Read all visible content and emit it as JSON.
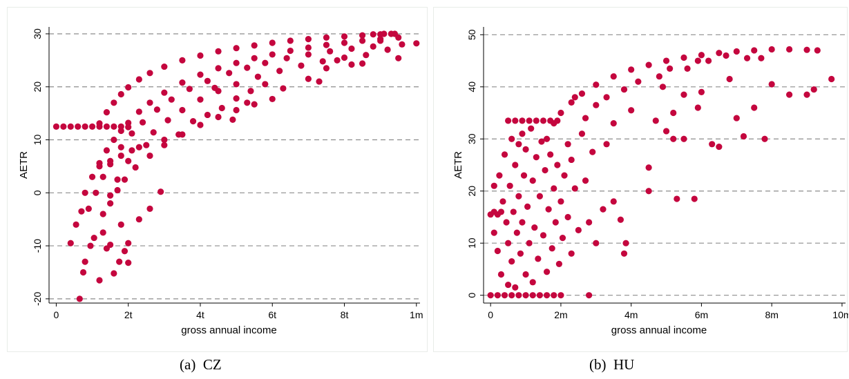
{
  "captions": [
    {
      "label": "(a)",
      "name": "CZ"
    },
    {
      "label": "(b)",
      "name": "HU"
    }
  ],
  "colors": {
    "points": "#c4063e",
    "grid": "#8c8c8c",
    "axis": "#000000"
  },
  "chart_data": [
    {
      "type": "scatter",
      "xlabel": "gross annual income",
      "ylabel": "AETR",
      "xlim": [
        -0.2,
        10.1
      ],
      "ylim": [
        -20.8,
        31.3
      ],
      "x_units": "hundred-thousands",
      "xticks": [
        {
          "v": 0,
          "label": "0"
        },
        {
          "v": 2,
          "label": "2t"
        },
        {
          "v": 4,
          "label": "4t"
        },
        {
          "v": 6,
          "label": "6t"
        },
        {
          "v": 8,
          "label": "8t"
        },
        {
          "v": 10,
          "label": "1m"
        }
      ],
      "yticks": [
        {
          "v": -20,
          "label": "-20"
        },
        {
          "v": -10,
          "label": "-10"
        },
        {
          "v": 0,
          "label": "0"
        },
        {
          "v": 10,
          "label": "10"
        },
        {
          "v": 20,
          "label": "20"
        },
        {
          "v": 30,
          "label": "30"
        }
      ],
      "grid": "horizontal-dashed",
      "points": [
        [
          0.0,
          12.5
        ],
        [
          0.2,
          12.5
        ],
        [
          0.4,
          12.5
        ],
        [
          0.6,
          12.5
        ],
        [
          0.8,
          12.5
        ],
        [
          1.0,
          12.5
        ],
        [
          1.2,
          12.5
        ],
        [
          1.4,
          12.5
        ],
        [
          1.6,
          12.5
        ],
        [
          1.8,
          12.5
        ],
        [
          2.0,
          12.4
        ],
        [
          1.2,
          13.1
        ],
        [
          1.4,
          15.2
        ],
        [
          1.6,
          17.0
        ],
        [
          1.8,
          18.6
        ],
        [
          2.0,
          19.9
        ],
        [
          2.3,
          21.4
        ],
        [
          2.6,
          22.6
        ],
        [
          3.0,
          23.8
        ],
        [
          3.5,
          25.0
        ],
        [
          4.0,
          25.9
        ],
        [
          4.5,
          26.7
        ],
        [
          5.0,
          27.3
        ],
        [
          5.5,
          27.8
        ],
        [
          6.0,
          28.3
        ],
        [
          6.5,
          28.7
        ],
        [
          7.0,
          29.0
        ],
        [
          7.5,
          29.3
        ],
        [
          8.0,
          29.5
        ],
        [
          8.5,
          29.7
        ],
        [
          9.0,
          29.9
        ],
        [
          9.4,
          30.0
        ],
        [
          0.8,
          0.0
        ],
        [
          1.0,
          3.0
        ],
        [
          1.2,
          5.6
        ],
        [
          1.4,
          8.0
        ],
        [
          1.6,
          10.0
        ],
        [
          1.8,
          11.7
        ],
        [
          2.0,
          13.2
        ],
        [
          2.3,
          15.3
        ],
        [
          2.6,
          17.0
        ],
        [
          3.0,
          18.9
        ],
        [
          3.5,
          20.8
        ],
        [
          4.0,
          22.3
        ],
        [
          4.5,
          23.5
        ],
        [
          5.0,
          24.5
        ],
        [
          5.5,
          25.4
        ],
        [
          6.0,
          26.1
        ],
        [
          6.5,
          26.8
        ],
        [
          7.0,
          27.4
        ],
        [
          7.5,
          27.9
        ],
        [
          8.0,
          28.3
        ],
        [
          8.5,
          28.7
        ],
        [
          9.0,
          29.0
        ],
        [
          9.5,
          29.3
        ],
        [
          0.9,
          -3.0
        ],
        [
          1.1,
          0.0
        ],
        [
          1.3,
          3.0
        ],
        [
          1.5,
          5.4
        ],
        [
          1.8,
          8.6
        ],
        [
          2.1,
          11.2
        ],
        [
          2.4,
          13.3
        ],
        [
          2.8,
          15.7
        ],
        [
          3.2,
          17.6
        ],
        [
          3.7,
          19.6
        ],
        [
          4.2,
          21.1
        ],
        [
          4.8,
          22.6
        ],
        [
          5.3,
          23.6
        ],
        [
          5.8,
          24.5
        ],
        [
          6.4,
          25.4
        ],
        [
          7.0,
          26.1
        ],
        [
          7.6,
          26.7
        ],
        [
          8.2,
          27.2
        ],
        [
          8.8,
          27.6
        ],
        [
          1.3,
          -4.0
        ],
        [
          1.5,
          -0.5
        ],
        [
          1.7,
          2.5
        ],
        [
          2.0,
          6.0
        ],
        [
          2.3,
          8.6
        ],
        [
          2.7,
          11.4
        ],
        [
          3.1,
          13.7
        ],
        [
          3.5,
          15.6
        ],
        [
          4.0,
          17.6
        ],
        [
          4.5,
          19.2
        ],
        [
          5.0,
          20.5
        ],
        [
          5.6,
          21.9
        ],
        [
          6.2,
          23.0
        ],
        [
          6.8,
          24.0
        ],
        [
          7.4,
          24.8
        ],
        [
          8.0,
          25.5
        ],
        [
          8.6,
          26.0
        ],
        [
          1.5,
          -2.0
        ],
        [
          1.7,
          0.5
        ],
        [
          1.9,
          2.5
        ],
        [
          2.2,
          4.8
        ],
        [
          2.6,
          7.0
        ],
        [
          3.0,
          9.0
        ],
        [
          3.5,
          11.0
        ],
        [
          4.0,
          12.8
        ],
        [
          4.5,
          14.3
        ],
        [
          5.0,
          15.6
        ],
        [
          5.5,
          16.7
        ],
        [
          6.0,
          17.7
        ],
        [
          1.2,
          5.0
        ],
        [
          1.5,
          6.0
        ],
        [
          1.8,
          7.0
        ],
        [
          2.1,
          8.0
        ],
        [
          2.5,
          9.0
        ],
        [
          3.0,
          10.0
        ],
        [
          3.4,
          11.0
        ],
        [
          0.4,
          -9.5
        ],
        [
          0.55,
          -6.0
        ],
        [
          0.7,
          -3.5
        ],
        [
          0.65,
          -20.0
        ],
        [
          0.75,
          -15.0
        ],
        [
          0.8,
          -13.0
        ],
        [
          0.95,
          -10.0
        ],
        [
          1.05,
          -8.5
        ],
        [
          1.2,
          -16.5
        ],
        [
          1.3,
          -7.5
        ],
        [
          1.4,
          -10.5
        ],
        [
          1.5,
          -9.8
        ],
        [
          1.6,
          -15.2
        ],
        [
          1.75,
          -13.0
        ],
        [
          1.8,
          -6.0
        ],
        [
          1.9,
          -11.0
        ],
        [
          2.0,
          -13.2
        ],
        [
          2.0,
          -9.5
        ],
        [
          2.3,
          -5.0
        ],
        [
          2.6,
          -3.0
        ],
        [
          2.9,
          0.2
        ],
        [
          7.5,
          23.5
        ],
        [
          7.8,
          25.0
        ],
        [
          8.2,
          24.2
        ],
        [
          8.5,
          24.4
        ],
        [
          9.0,
          28.7
        ],
        [
          9.2,
          27.0
        ],
        [
          9.5,
          25.4
        ],
        [
          9.6,
          28.0
        ],
        [
          10.0,
          28.2
        ],
        [
          6.3,
          19.7
        ],
        [
          7.0,
          21.5
        ],
        [
          7.3,
          21.0
        ],
        [
          5.8,
          20.5
        ],
        [
          5.4,
          19.2
        ],
        [
          5.0,
          17.8
        ],
        [
          4.6,
          16.0
        ],
        [
          4.2,
          14.7
        ],
        [
          3.8,
          13.5
        ],
        [
          4.4,
          19.8
        ],
        [
          5.3,
          17.0
        ],
        [
          4.9,
          13.8
        ],
        [
          9.3,
          30.0
        ],
        [
          9.1,
          30.0
        ],
        [
          8.8,
          29.9
        ]
      ]
    },
    {
      "type": "scatter",
      "xlabel": "gross annual income",
      "ylabel": "AETR",
      "xlim": [
        -0.2,
        10.1
      ],
      "ylim": [
        -1.5,
        51.5
      ],
      "x_units": "millions",
      "xticks": [
        {
          "v": 0,
          "label": "0"
        },
        {
          "v": 2,
          "label": "2m"
        },
        {
          "v": 4,
          "label": "4m"
        },
        {
          "v": 6,
          "label": "6m"
        },
        {
          "v": 8,
          "label": "8m"
        },
        {
          "v": 10,
          "label": "10m"
        }
      ],
      "yticks": [
        {
          "v": 0,
          "label": "0"
        },
        {
          "v": 10,
          "label": "10"
        },
        {
          "v": 20,
          "label": "20"
        },
        {
          "v": 30,
          "label": "30"
        },
        {
          "v": 40,
          "label": "40"
        },
        {
          "v": 50,
          "label": "50"
        }
      ],
      "grid": "horizontal-dashed",
      "points": [
        [
          0.0,
          0.0
        ],
        [
          0.2,
          0.0
        ],
        [
          0.4,
          0.0
        ],
        [
          0.6,
          0.0
        ],
        [
          0.8,
          0.0
        ],
        [
          1.0,
          0.0
        ],
        [
          1.2,
          0.0
        ],
        [
          1.4,
          0.0
        ],
        [
          1.6,
          0.0
        ],
        [
          1.8,
          0.0
        ],
        [
          2.0,
          0.0
        ],
        [
          2.8,
          0.0
        ],
        [
          0.0,
          15.5
        ],
        [
          0.1,
          16.0
        ],
        [
          0.2,
          15.5
        ],
        [
          0.3,
          16.0
        ],
        [
          0.5,
          33.5
        ],
        [
          0.7,
          33.5
        ],
        [
          0.9,
          33.5
        ],
        [
          1.1,
          33.5
        ],
        [
          1.3,
          33.5
        ],
        [
          1.5,
          33.5
        ],
        [
          1.7,
          33.5
        ],
        [
          1.9,
          33.5
        ],
        [
          1.6,
          30.0
        ],
        [
          1.8,
          33.0
        ],
        [
          2.0,
          35.0
        ],
        [
          2.3,
          37.0
        ],
        [
          2.6,
          38.7
        ],
        [
          3.0,
          40.4
        ],
        [
          3.5,
          42.0
        ],
        [
          4.0,
          43.3
        ],
        [
          4.5,
          44.2
        ],
        [
          5.0,
          45.0
        ],
        [
          5.5,
          45.6
        ],
        [
          6.0,
          46.1
        ],
        [
          6.5,
          46.5
        ],
        [
          7.0,
          46.8
        ],
        [
          7.5,
          47.0
        ],
        [
          8.0,
          47.2
        ],
        [
          8.5,
          47.2
        ],
        [
          9.0,
          47.1
        ],
        [
          9.3,
          47.0
        ],
        [
          0.1,
          21.0
        ],
        [
          0.1,
          12.0
        ],
        [
          0.2,
          8.5
        ],
        [
          0.25,
          23.0
        ],
        [
          0.3,
          4.0
        ],
        [
          0.35,
          18.0
        ],
        [
          0.4,
          27.0
        ],
        [
          0.45,
          14.0
        ],
        [
          0.5,
          2.0
        ],
        [
          0.5,
          10.0
        ],
        [
          0.55,
          21.0
        ],
        [
          0.6,
          30.0
        ],
        [
          0.6,
          6.5
        ],
        [
          0.65,
          16.0
        ],
        [
          0.7,
          25.0
        ],
        [
          0.7,
          1.5
        ],
        [
          0.75,
          12.0
        ],
        [
          0.8,
          29.0
        ],
        [
          0.8,
          19.0
        ],
        [
          0.85,
          8.0
        ],
        [
          0.9,
          31.0
        ],
        [
          0.9,
          14.0
        ],
        [
          0.95,
          23.0
        ],
        [
          1.0,
          4.0
        ],
        [
          1.0,
          28.0
        ],
        [
          1.05,
          17.0
        ],
        [
          1.1,
          10.0
        ],
        [
          1.15,
          32.0
        ],
        [
          1.2,
          22.0
        ],
        [
          1.2,
          2.5
        ],
        [
          1.25,
          13.0
        ],
        [
          1.3,
          26.5
        ],
        [
          1.35,
          7.0
        ],
        [
          1.4,
          19.0
        ],
        [
          1.45,
          29.5
        ],
        [
          1.5,
          11.5
        ],
        [
          1.55,
          24.0
        ],
        [
          1.6,
          4.5
        ],
        [
          1.65,
          16.5
        ],
        [
          1.7,
          27.0
        ],
        [
          1.75,
          9.0
        ],
        [
          1.8,
          20.5
        ],
        [
          1.85,
          14.0
        ],
        [
          1.9,
          25.0
        ],
        [
          1.95,
          6.0
        ],
        [
          2.0,
          18.0
        ],
        [
          2.05,
          11.0
        ],
        [
          2.1,
          23.0
        ],
        [
          2.2,
          29.0
        ],
        [
          2.2,
          15.0
        ],
        [
          2.3,
          26.0
        ],
        [
          2.3,
          8.0
        ],
        [
          2.4,
          20.5
        ],
        [
          2.5,
          12.5
        ],
        [
          2.6,
          31.0
        ],
        [
          2.7,
          22.0
        ],
        [
          2.8,
          14.0
        ],
        [
          2.9,
          27.5
        ],
        [
          3.0,
          10.0
        ],
        [
          3.2,
          16.5
        ],
        [
          3.3,
          29.0
        ],
        [
          3.5,
          18.0
        ],
        [
          3.7,
          14.5
        ],
        [
          3.8,
          8.0
        ],
        [
          3.85,
          10.0
        ],
        [
          2.4,
          38.0
        ],
        [
          2.7,
          34.0
        ],
        [
          3.0,
          36.5
        ],
        [
          3.3,
          38.0
        ],
        [
          3.5,
          33.0
        ],
        [
          3.8,
          39.5
        ],
        [
          4.0,
          35.5
        ],
        [
          4.2,
          41.0
        ],
        [
          4.5,
          24.5
        ],
        [
          4.5,
          20.0
        ],
        [
          4.7,
          33.5
        ],
        [
          4.9,
          40.0
        ],
        [
          5.0,
          31.5
        ],
        [
          5.2,
          35.0
        ],
        [
          5.2,
          30.0
        ],
        [
          5.3,
          18.5
        ],
        [
          5.5,
          38.5
        ],
        [
          5.5,
          30.0
        ],
        [
          5.8,
          18.5
        ],
        [
          5.9,
          36.0
        ],
        [
          6.0,
          39.0
        ],
        [
          6.3,
          29.0
        ],
        [
          6.5,
          28.5
        ],
        [
          6.8,
          41.5
        ],
        [
          7.0,
          34.0
        ],
        [
          7.2,
          30.5
        ],
        [
          7.5,
          36.0
        ],
        [
          7.8,
          30.0
        ],
        [
          8.0,
          40.5
        ],
        [
          8.5,
          38.5
        ],
        [
          9.0,
          38.5
        ],
        [
          9.2,
          39.5
        ],
        [
          9.7,
          41.5
        ],
        [
          7.3,
          45.5
        ],
        [
          7.7,
          45.5
        ],
        [
          6.7,
          46.0
        ],
        [
          6.2,
          45.0
        ],
        [
          5.9,
          45.0
        ],
        [
          5.6,
          43.5
        ],
        [
          5.1,
          43.5
        ],
        [
          4.8,
          42.0
        ]
      ]
    }
  ]
}
